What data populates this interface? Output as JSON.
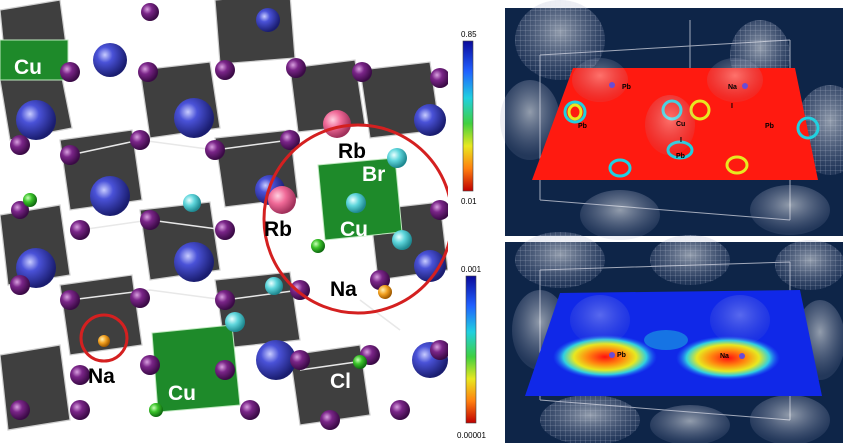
{
  "crystal_structure": {
    "labels": {
      "cu_top": "Cu",
      "rb_upper": "Rb",
      "br": "Br",
      "rb_left": "Rb",
      "cu_center": "Cu",
      "na_right": "Na",
      "na_left": "Na",
      "cu_bottom": "Cu",
      "cl": "Cl"
    },
    "colors": {
      "octahedron": "#3f3f3f",
      "cu_block": "#1e8a2a",
      "highlight_circle": "#d42020",
      "anion": "#6d1f7a",
      "big_cation": "#3f45c8",
      "rb": "#f06a98",
      "br": "#5fd6dc",
      "cl": "#3bc32a",
      "na": "#f2a020"
    }
  },
  "colorbars": [
    {
      "max_label": "0.85",
      "min_label": "0.01"
    },
    {
      "max_label": "0.001",
      "min_label": "0.00001"
    }
  ],
  "density_panels": {
    "top": {
      "labels": {
        "pb1": "Pb",
        "na": "Na",
        "pb_left": "Pb",
        "cu": "Cu",
        "pb_right": "Pb",
        "pb_low": "Pb",
        "i1": "I",
        "i2": "I"
      }
    },
    "bottom": {
      "labels": {
        "pb": "Pb",
        "na": "Na"
      }
    }
  }
}
